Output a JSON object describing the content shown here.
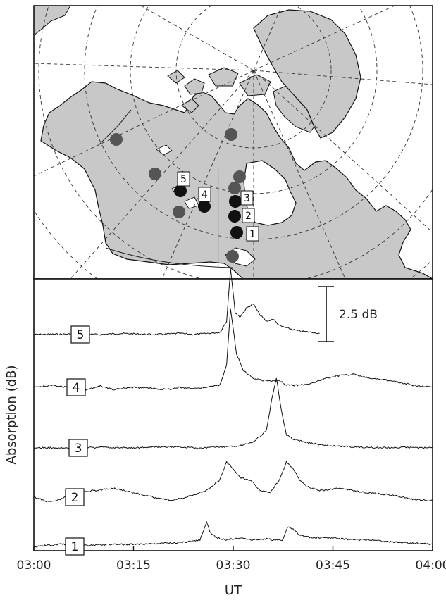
{
  "map_panel": {
    "land_color": "#c8c8c8",
    "coast_color": "#111111",
    "grid_color": "#333333",
    "station_colors": {
      "active": "#111111",
      "other": "#555555"
    },
    "labeled_stations": [
      {
        "id": "1",
        "color": "active"
      },
      {
        "id": "2",
        "color": "active"
      },
      {
        "id": "3",
        "color": "active"
      },
      {
        "id": "4",
        "color": "active"
      },
      {
        "id": "5",
        "color": "active"
      }
    ],
    "unlabeled_station_count": 7
  },
  "chart_data": {
    "type": "line",
    "xlabel": "UT",
    "ylabel": "Absorption (dB)",
    "x_ticks": [
      "03:00",
      "03:15",
      "03:30",
      "03:45",
      "04:00"
    ],
    "x_range_minutes": [
      0,
      60
    ],
    "scale_bar": {
      "label": "2.5 dB",
      "value_db": 2.5
    },
    "grid": false,
    "series": [
      {
        "name": "5",
        "baseline": 0,
        "points": [
          [
            0,
            0
          ],
          [
            5,
            0.02
          ],
          [
            10,
            0
          ],
          [
            13,
            0.05
          ],
          [
            18,
            0
          ],
          [
            22,
            0.05
          ],
          [
            24,
            0
          ],
          [
            26,
            0.05
          ],
          [
            28,
            0.1
          ],
          [
            29,
            0.6
          ],
          [
            29.6,
            3.0
          ],
          [
            30.3,
            1.0
          ],
          [
            31,
            0.8
          ],
          [
            32,
            1.2
          ],
          [
            33,
            1.4
          ],
          [
            34,
            0.9
          ],
          [
            35,
            0.6
          ],
          [
            36,
            0.7
          ],
          [
            37,
            0.4
          ],
          [
            38,
            0.3
          ],
          [
            40,
            0.15
          ],
          [
            42,
            0.1
          ],
          [
            43,
            0.05
          ]
        ]
      },
      {
        "name": "4",
        "baseline": 0,
        "points": [
          [
            0,
            0
          ],
          [
            3,
            0.1
          ],
          [
            5,
            0
          ],
          [
            8,
            -0.1
          ],
          [
            10,
            0.05
          ],
          [
            12,
            -0.1
          ],
          [
            15,
            0
          ],
          [
            18,
            -0.05
          ],
          [
            20,
            -0.1
          ],
          [
            22,
            0
          ],
          [
            24,
            -0.05
          ],
          [
            26,
            0
          ],
          [
            28,
            0.1
          ],
          [
            29,
            1.0
          ],
          [
            29.6,
            3.6
          ],
          [
            30.5,
            1.5
          ],
          [
            31.5,
            0.8
          ],
          [
            33,
            0.4
          ],
          [
            35,
            0.3
          ],
          [
            37,
            0.3
          ],
          [
            38,
            0.1
          ],
          [
            40,
            0.1
          ],
          [
            42,
            0.2
          ],
          [
            45,
            0.5
          ],
          [
            48,
            0.6
          ],
          [
            51,
            0.4
          ],
          [
            54,
            0.3
          ],
          [
            57,
            0.1
          ],
          [
            60,
            0
          ]
        ]
      },
      {
        "name": "3",
        "baseline": 0,
        "points": [
          [
            0,
            0
          ],
          [
            5,
            0
          ],
          [
            10,
            0.02
          ],
          [
            15,
            0
          ],
          [
            20,
            0.05
          ],
          [
            25,
            0
          ],
          [
            28,
            0.05
          ],
          [
            31,
            0.1
          ],
          [
            33,
            0.25
          ],
          [
            35,
            0.8
          ],
          [
            35.8,
            2.2
          ],
          [
            36.5,
            3.2
          ],
          [
            37.2,
            1.8
          ],
          [
            38,
            0.6
          ],
          [
            39,
            0.4
          ],
          [
            41,
            0.25
          ],
          [
            44,
            0.1
          ],
          [
            48,
            0.05
          ],
          [
            52,
            0
          ],
          [
            56,
            0.02
          ],
          [
            60,
            0
          ]
        ]
      },
      {
        "name": "2",
        "baseline": 0,
        "points": [
          [
            0,
            0
          ],
          [
            2,
            -0.2
          ],
          [
            4,
            -0.1
          ],
          [
            6,
            0.2
          ],
          [
            9,
            0.3
          ],
          [
            12,
            0.4
          ],
          [
            15,
            0.2
          ],
          [
            18,
            0
          ],
          [
            21,
            -0.15
          ],
          [
            24,
            0.1
          ],
          [
            26,
            0.3
          ],
          [
            28,
            0.8
          ],
          [
            29,
            1.6
          ],
          [
            30,
            1.3
          ],
          [
            31,
            0.9
          ],
          [
            33,
            0.7
          ],
          [
            34,
            0.3
          ],
          [
            35.5,
            0.2
          ],
          [
            37,
            0.8
          ],
          [
            38,
            1.6
          ],
          [
            39,
            1.3
          ],
          [
            40,
            0.8
          ],
          [
            41,
            0.5
          ],
          [
            43,
            0.3
          ],
          [
            46,
            0.4
          ],
          [
            50,
            0.2
          ],
          [
            54,
            0.1
          ],
          [
            57,
            -0.1
          ],
          [
            60,
            -0.15
          ]
        ]
      },
      {
        "name": "1",
        "baseline": 0,
        "points": [
          [
            0,
            0
          ],
          [
            4,
            0.1
          ],
          [
            8,
            0.05
          ],
          [
            12,
            0.1
          ],
          [
            16,
            0.1
          ],
          [
            20,
            0.15
          ],
          [
            23,
            0.2
          ],
          [
            25,
            0.3
          ],
          [
            26,
            1.1
          ],
          [
            26.6,
            0.6
          ],
          [
            27.5,
            0.4
          ],
          [
            29,
            0.3
          ],
          [
            31,
            0.4
          ],
          [
            33,
            0.3
          ],
          [
            35,
            0.35
          ],
          [
            36,
            0.3
          ],
          [
            37.5,
            0.3
          ],
          [
            38.2,
            0.9
          ],
          [
            39,
            0.8
          ],
          [
            40,
            0.5
          ],
          [
            42,
            0.4
          ],
          [
            45,
            0.4
          ],
          [
            48,
            0.3
          ],
          [
            51,
            0.3
          ],
          [
            54,
            0.2
          ],
          [
            57,
            0.15
          ],
          [
            60,
            0.1
          ]
        ]
      }
    ]
  }
}
